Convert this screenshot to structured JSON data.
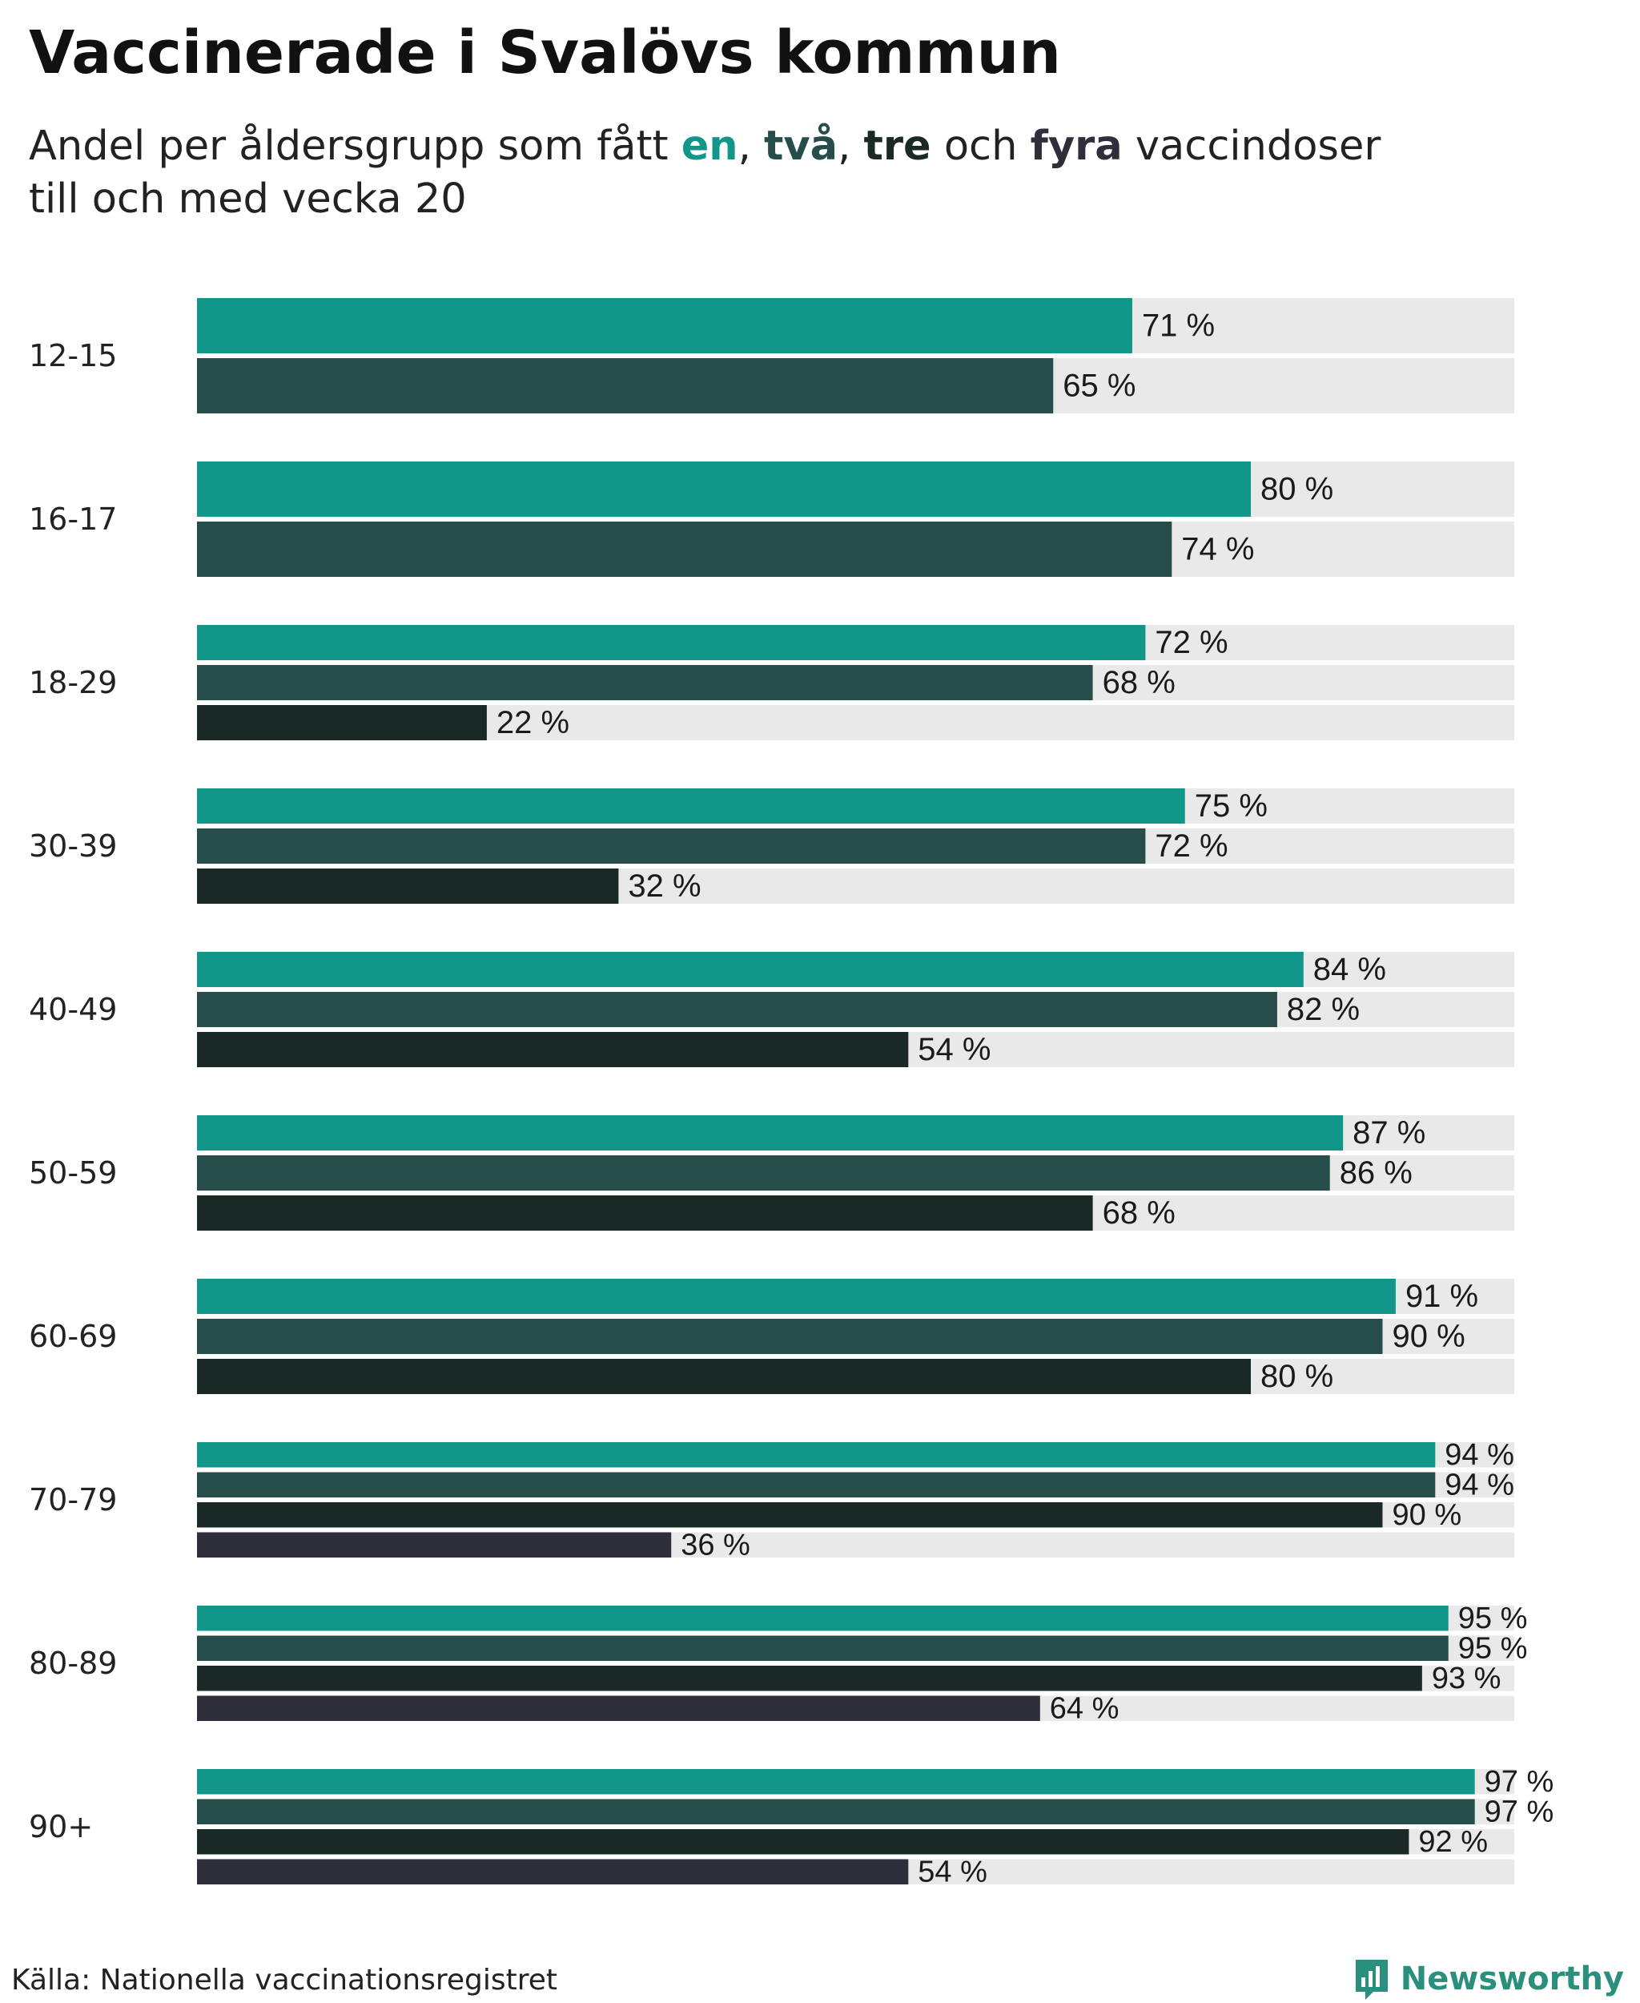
{
  "title": "Vaccinerade i Svalövs kommun",
  "subtitle": {
    "line1_prefix": "Andel per åldersgrupp som fått ",
    "dose1": "en",
    "sep1": ", ",
    "dose2": "två",
    "sep2": ", ",
    "dose3": "tre",
    "conj": " och ",
    "dose4": "fyra",
    "line1_suffix": " vaccindoser",
    "line2": "till och med vecka 20"
  },
  "colors": {
    "dose1": "#12968a",
    "dose2": "#264d4a",
    "dose3": "#1a2826",
    "dose4": "#2f2f3b",
    "track": "#e9e9e9",
    "brand": "#2a8f7c"
  },
  "footer": {
    "source": "Källa: Nationella vaccinationsregistret",
    "brand": "Newsworthy"
  },
  "chart_data": {
    "type": "bar",
    "orientation": "horizontal",
    "value_suffix": " %",
    "xlim": [
      0,
      100
    ],
    "categories": [
      "12-15",
      "16-17",
      "18-29",
      "30-39",
      "40-49",
      "50-59",
      "60-69",
      "70-79",
      "80-89",
      "90+"
    ],
    "groups": [
      {
        "label": "12-15",
        "values": [
          71,
          65
        ]
      },
      {
        "label": "16-17",
        "values": [
          80,
          74
        ]
      },
      {
        "label": "18-29",
        "values": [
          72,
          68,
          22
        ]
      },
      {
        "label": "30-39",
        "values": [
          75,
          72,
          32
        ]
      },
      {
        "label": "40-49",
        "values": [
          84,
          82,
          54
        ]
      },
      {
        "label": "50-59",
        "values": [
          87,
          86,
          68
        ]
      },
      {
        "label": "60-69",
        "values": [
          91,
          90,
          80
        ]
      },
      {
        "label": "70-79",
        "values": [
          94,
          94,
          90,
          36
        ]
      },
      {
        "label": "80-89",
        "values": [
          95,
          95,
          93,
          64
        ]
      },
      {
        "label": "90+",
        "values": [
          97,
          97,
          92,
          54
        ]
      }
    ]
  }
}
